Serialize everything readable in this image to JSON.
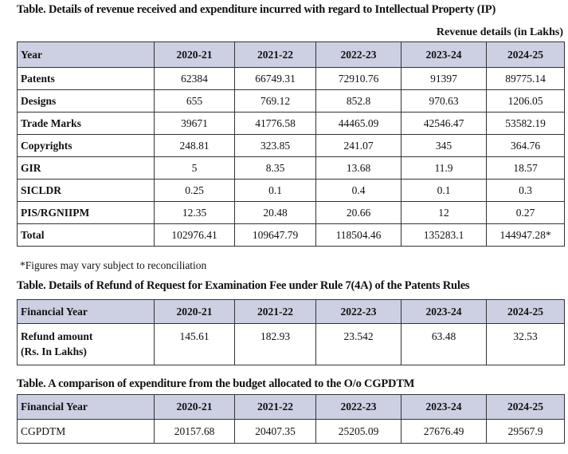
{
  "revenue": {
    "title": "Table. Details of revenue received and expenditure incurred with regard to Intellectual Property (IP)",
    "unit": "Revenue details (in Lakhs)",
    "headers": [
      "Year",
      "2020-21",
      "2021-22",
      "2022-23",
      "2023-24",
      "2024-25"
    ],
    "rows": [
      {
        "label": "Patents",
        "values": [
          "62384",
          "66749.31",
          "72910.76",
          "91397",
          "89775.14"
        ]
      },
      {
        "label": "Designs",
        "values": [
          "655",
          "769.12",
          "852.8",
          "970.63",
          "1206.05"
        ]
      },
      {
        "label": "Trade Marks",
        "values": [
          "39671",
          "41776.58",
          "44465.09",
          "42546.47",
          "53582.19"
        ]
      },
      {
        "label": "Copyrights",
        "values": [
          "248.81",
          "323.85",
          "241.07",
          "345",
          "364.76"
        ]
      },
      {
        "label": "GIR",
        "values": [
          "5",
          "8.35",
          "13.68",
          "11.9",
          "18.57"
        ]
      },
      {
        "label": "SICLDR",
        "values": [
          "0.25",
          "0.1",
          "0.4",
          "0.1",
          "0.3"
        ]
      },
      {
        "label": "PIS/RGNIIPM",
        "values": [
          "12.35",
          "20.48",
          "20.66",
          "12",
          "0.27"
        ]
      },
      {
        "label": "Total",
        "values": [
          "102976.41",
          "109647.79",
          "118504.46",
          "135283.1",
          "144947.28*"
        ]
      }
    ],
    "footnote": "*Figures may vary subject to reconciliation"
  },
  "refund": {
    "title": "Table. Details of Refund of Request for Examination Fee under Rule 7(4A) of the Patents Rules",
    "headers": [
      "Financial Year",
      "2020-21",
      "2021-22",
      "2022-23",
      "2023-24",
      "2024-25"
    ],
    "row": {
      "label_line1": "Refund amount",
      "label_line2": "(Rs. In Lakhs)",
      "values": [
        "145.61",
        "182.93",
        "23.542",
        "63.48",
        "32.53"
      ]
    }
  },
  "budget": {
    "title": "Table. A comparison of expenditure from the budget allocated to the O/o CGPDTM",
    "headers": [
      "Financial Year",
      "2020-21",
      "2021-22",
      "2022-23",
      "2023-24",
      "2024-25"
    ],
    "row": {
      "label": "CGPDTM",
      "values": [
        "20157.68",
        "20407.35",
        "25205.09",
        "27676.49",
        "29567.9"
      ]
    }
  },
  "colors": {
    "header_bg": "#cdd0e3",
    "border": "#333333"
  }
}
